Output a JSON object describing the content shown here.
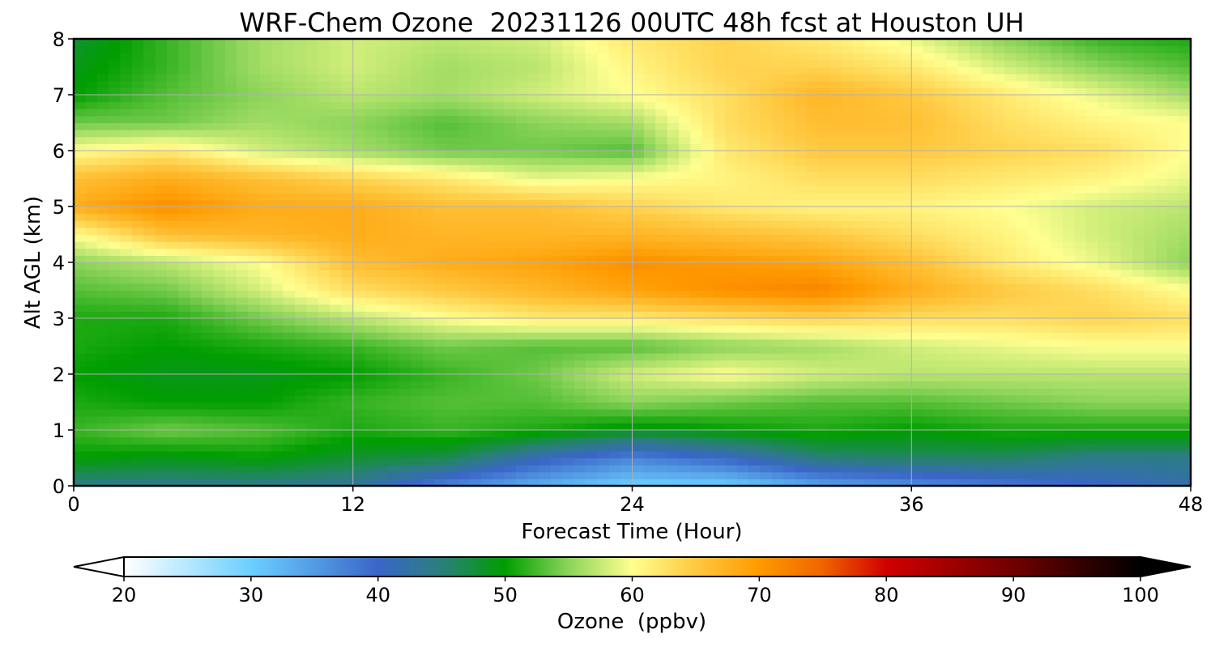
{
  "chart_data": {
    "type": "heatmap",
    "subtype": "filled-contour",
    "title": "WRF-Chem Ozone  20231126 00UTC 48h fcst at Houston UH",
    "xlabel": "Forecast Time (Hour)",
    "ylabel": "Alt AGL (km)",
    "xlim": [
      0,
      48
    ],
    "ylim": [
      0,
      8
    ],
    "x_ticks": [
      0,
      12,
      24,
      36,
      48
    ],
    "y_ticks": [
      0,
      1,
      2,
      3,
      4,
      5,
      6,
      7,
      8
    ],
    "grid": true,
    "colorbar": {
      "label": "Ozone  (ppbv)",
      "orientation": "horizontal",
      "placement": "bottom",
      "min": 20,
      "max": 100,
      "extend": "both",
      "ticks": [
        20,
        30,
        40,
        50,
        60,
        70,
        80,
        90,
        100
      ],
      "color_stops": [
        {
          "value": 20,
          "color": "#ffffff"
        },
        {
          "value": 30,
          "color": "#6ccfff"
        },
        {
          "value": 40,
          "color": "#3a66c8"
        },
        {
          "value": 45,
          "color": "#2a7f7a"
        },
        {
          "value": 50,
          "color": "#009e00"
        },
        {
          "value": 55,
          "color": "#8cd45a"
        },
        {
          "value": 60,
          "color": "#ffff90"
        },
        {
          "value": 65,
          "color": "#ffc840"
        },
        {
          "value": 70,
          "color": "#ff9a00"
        },
        {
          "value": 75,
          "color": "#f06400"
        },
        {
          "value": 80,
          "color": "#d00000"
        },
        {
          "value": 90,
          "color": "#700000"
        },
        {
          "value": 100,
          "color": "#000000"
        }
      ]
    },
    "x": [
      0,
      4,
      8,
      12,
      16,
      20,
      24,
      28,
      32,
      36,
      40,
      44,
      48
    ],
    "y": [
      0,
      0.5,
      1,
      1.5,
      2,
      2.5,
      3,
      3.5,
      4,
      4.5,
      5,
      5.5,
      6,
      6.5,
      7,
      7.5,
      8
    ],
    "z": [
      [
        44,
        44,
        44,
        43,
        37,
        33,
        30,
        30,
        34,
        36,
        38,
        40,
        42
      ],
      [
        50,
        49,
        50,
        48,
        47,
        41,
        37,
        40,
        45,
        46,
        46,
        44,
        44
      ],
      [
        52,
        54,
        53,
        51,
        52,
        51,
        49,
        50,
        51,
        50,
        51,
        51,
        51
      ],
      [
        51,
        50,
        50,
        52,
        53,
        53,
        55,
        54,
        53,
        53,
        54,
        55,
        55
      ],
      [
        50,
        49,
        49,
        50,
        52,
        54,
        58,
        60,
        58,
        57,
        57,
        57,
        57
      ],
      [
        51,
        50,
        51,
        52,
        54,
        53,
        53,
        55,
        56,
        58,
        59,
        60,
        60
      ],
      [
        51,
        51,
        54,
        57,
        60,
        62,
        62,
        63,
        64,
        63,
        63,
        64,
        63
      ],
      [
        53,
        54,
        58,
        63,
        65,
        67,
        69,
        71,
        72,
        68,
        65,
        63,
        60
      ],
      [
        55,
        57,
        60,
        66,
        68,
        69,
        71,
        70,
        69,
        66,
        62,
        59,
        55
      ],
      [
        60,
        66,
        67,
        68,
        67,
        67,
        67,
        66,
        65,
        63,
        61,
        58,
        56
      ],
      [
        68,
        71,
        68,
        68,
        66,
        66,
        64,
        62,
        61,
        61,
        60,
        58,
        57
      ],
      [
        66,
        68,
        66,
        64,
        62,
        59,
        60,
        61,
        63,
        63,
        62,
        61,
        59
      ],
      [
        60,
        62,
        58,
        56,
        54,
        54,
        53,
        62,
        65,
        65,
        64,
        63,
        60
      ],
      [
        54,
        54,
        56,
        55,
        53,
        55,
        56,
        63,
        66,
        66,
        63,
        61,
        60
      ],
      [
        50,
        53,
        55,
        57,
        56,
        58,
        60,
        63,
        67,
        65,
        62,
        59,
        56
      ],
      [
        49,
        52,
        56,
        58,
        56,
        57,
        61,
        64,
        64,
        62,
        58,
        55,
        53
      ],
      [
        48,
        52,
        56,
        58,
        57,
        58,
        62,
        64,
        62,
        59,
        55,
        52,
        51
      ]
    ]
  }
}
